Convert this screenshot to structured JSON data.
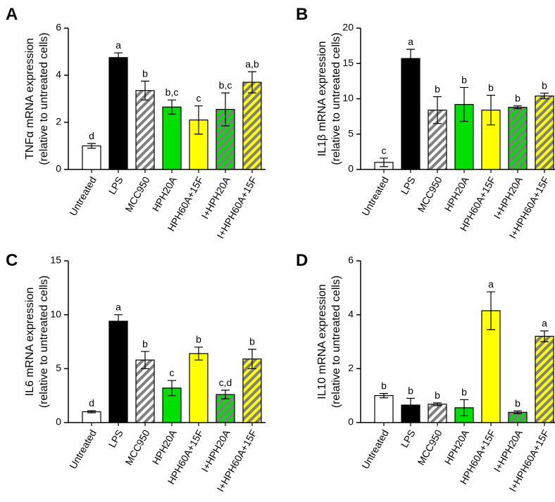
{
  "chart_data": [
    {
      "type": "bar",
      "panel_label": "A",
      "ylabel": [
        "TNFα mRNA expression",
        "(relative to untreated cells)"
      ],
      "categories": [
        "Untreated",
        "LPS",
        "MCC950",
        "HPH20A",
        "HPH60A+15F",
        "I+HPH20A",
        "I+HPH60A+15F"
      ],
      "values": [
        1.0,
        4.75,
        3.35,
        2.65,
        2.1,
        2.55,
        3.7
      ],
      "errors": [
        0.1,
        0.2,
        0.4,
        0.3,
        0.6,
        0.7,
        0.45
      ],
      "annotations": [
        "d",
        "a",
        "b",
        "b,c",
        "c",
        "b,c",
        "a,b"
      ],
      "colors": [
        "#ffffff",
        "#000000",
        "#ffffff",
        "#00e000",
        "#ffff00",
        "#00e000",
        "#ffff00"
      ],
      "hatch": [
        false,
        false,
        true,
        false,
        false,
        true,
        true
      ],
      "hatch_color": "#808080",
      "ylim": [
        0,
        6
      ],
      "yticks": [
        0,
        2,
        4,
        6
      ]
    },
    {
      "type": "bar",
      "panel_label": "B",
      "ylabel": [
        "IL1β mRNA expression",
        "(relative to untreated cells)"
      ],
      "categories": [
        "Untreated",
        "LPS",
        "MCC950",
        "HPH20A",
        "HPH60A+15F",
        "I+HPH20A",
        "I+HPH60A+15F"
      ],
      "values": [
        1.0,
        15.7,
        8.4,
        9.2,
        8.4,
        8.8,
        10.4
      ],
      "errors": [
        0.6,
        1.3,
        1.9,
        2.4,
        2.1,
        0.2,
        0.4
      ],
      "annotations": [
        "c",
        "a",
        "b",
        "b",
        "b",
        "b",
        "b"
      ],
      "colors": [
        "#ffffff",
        "#000000",
        "#ffffff",
        "#00e000",
        "#ffff00",
        "#00e000",
        "#ffff00"
      ],
      "hatch": [
        false,
        false,
        true,
        false,
        false,
        true,
        true
      ],
      "hatch_color": "#808080",
      "ylim": [
        0,
        20
      ],
      "yticks": [
        0,
        5,
        10,
        15,
        20
      ]
    },
    {
      "type": "bar",
      "panel_label": "C",
      "ylabel": [
        "IL6 mRNA expression",
        "(relative to untreated cells)"
      ],
      "categories": [
        "Untreated",
        "LPS",
        "MCC950",
        "HPH20A",
        "HPH60A+15F",
        "I+HPH20A",
        "I+HPH60A+15F"
      ],
      "values": [
        1.0,
        9.4,
        5.8,
        3.2,
        6.4,
        2.6,
        5.9
      ],
      "errors": [
        0.1,
        0.6,
        0.8,
        0.7,
        0.6,
        0.4,
        0.9
      ],
      "annotations": [
        "d",
        "a",
        "b",
        "c",
        "b",
        "c,d",
        "b"
      ],
      "colors": [
        "#ffffff",
        "#000000",
        "#ffffff",
        "#00e000",
        "#ffff00",
        "#00e000",
        "#ffff00"
      ],
      "hatch": [
        false,
        false,
        true,
        false,
        false,
        true,
        true
      ],
      "hatch_color": "#808080",
      "ylim": [
        0,
        15
      ],
      "yticks": [
        0,
        5,
        10,
        15
      ]
    },
    {
      "type": "bar",
      "panel_label": "D",
      "ylabel": [
        "IL10 mRNA expression",
        "(relative to untreated cells)"
      ],
      "categories": [
        "Untreated",
        "LPS",
        "MCC950",
        "HPH20A",
        "HPH60A+15F",
        "I+HPH20A",
        "I+HPH60A+15F"
      ],
      "values": [
        1.0,
        0.65,
        0.68,
        0.55,
        4.15,
        0.38,
        3.2
      ],
      "errors": [
        0.08,
        0.25,
        0.05,
        0.3,
        0.7,
        0.05,
        0.2
      ],
      "annotations": [
        "b",
        "b",
        "b",
        "b",
        "a",
        "b",
        "a"
      ],
      "colors": [
        "#ffffff",
        "#000000",
        "#ffffff",
        "#00e000",
        "#ffff00",
        "#00e000",
        "#ffff00"
      ],
      "hatch": [
        false,
        false,
        true,
        false,
        false,
        true,
        true
      ],
      "hatch_color": "#808080",
      "ylim": [
        0,
        6
      ],
      "yticks": [
        0,
        2,
        4,
        6
      ]
    }
  ]
}
